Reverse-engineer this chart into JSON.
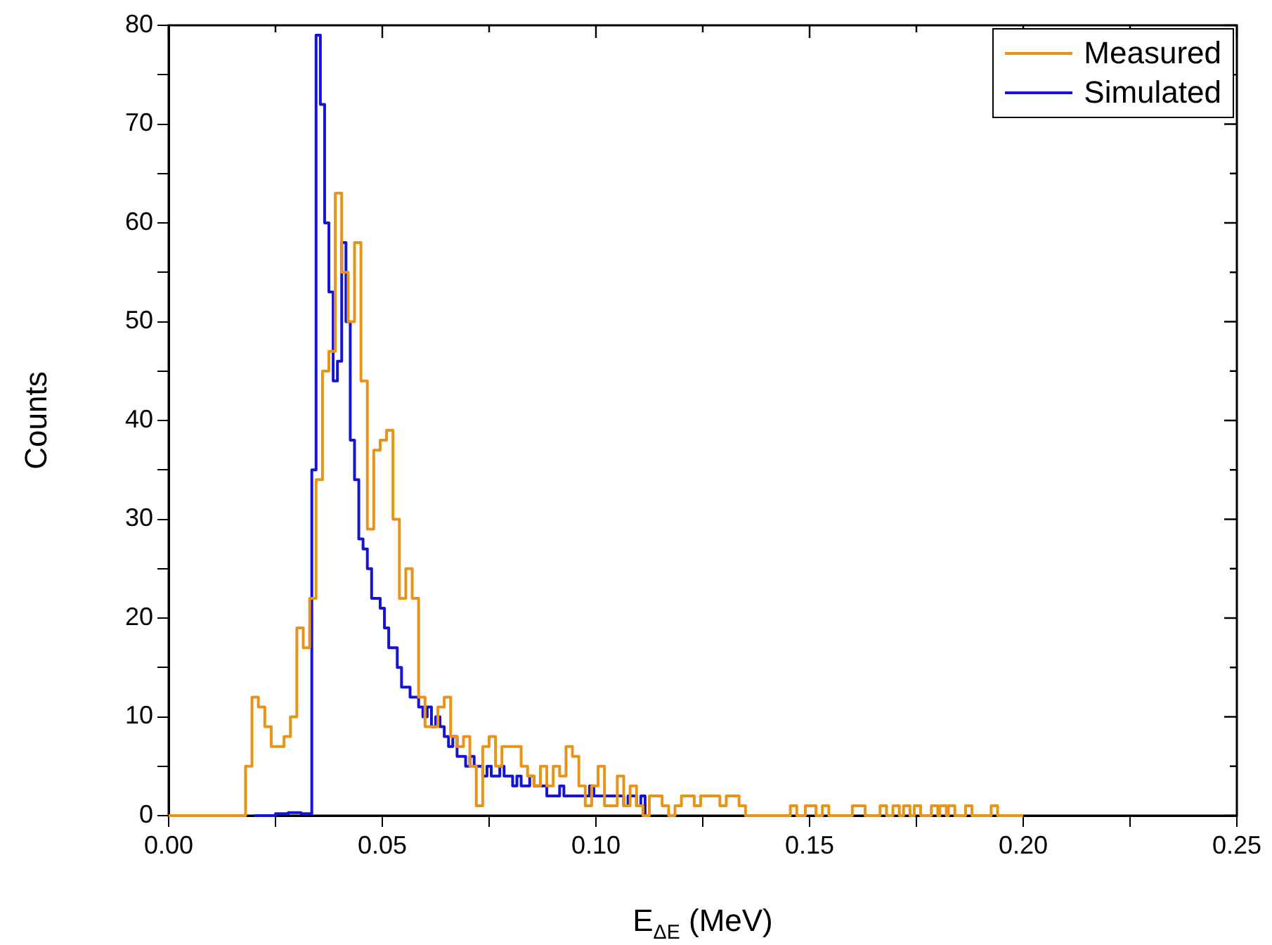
{
  "chart_data": {
    "type": "step",
    "xlabel": "E$_{ΔE}$ (MeV)",
    "ylabel": "Counts",
    "xlim": [
      0,
      0.25
    ],
    "xticks": [
      {
        "value": 0,
        "label": "0.00"
      },
      {
        "value": 0.025,
        "label": null
      },
      {
        "value": 0.05,
        "label": "0.05"
      },
      {
        "value": 0.075,
        "label": null
      },
      {
        "value": 0.1,
        "label": "0.10"
      },
      {
        "value": 0.125,
        "label": null
      },
      {
        "value": 0.15,
        "label": "0.15"
      },
      {
        "value": 0.175,
        "label": null
      },
      {
        "value": 0.2,
        "label": "0.20"
      },
      {
        "value": 0.225,
        "label": null
      },
      {
        "value": 0.25,
        "label": "0.25"
      }
    ],
    "ylim": [
      0,
      80
    ],
    "yticks": [
      0,
      {
        "value": 5,
        "label": null
      },
      10,
      {
        "value": 15,
        "label": null
      },
      20,
      {
        "value": 25,
        "label": null
      },
      30,
      {
        "value": 35,
        "label": null
      },
      40,
      {
        "value": 45,
        "label": null
      },
      50,
      {
        "value": 55,
        "label": null
      },
      60,
      {
        "value": 65,
        "label": null
      },
      70,
      {
        "value": 75,
        "label": null
      },
      80
    ],
    "legend": "top right",
    "grid": false,
    "line_style": "solid",
    "marker": "none",
    "series": [
      {
        "name": "Measured",
        "color": "#e8941a",
        "x": [
          0,
          0.018,
          0.0195,
          0.021,
          0.0225,
          0.024,
          0.0255,
          0.027,
          0.0285,
          0.03,
          0.0315,
          0.033,
          0.0345,
          0.036,
          0.0375,
          0.039,
          0.0405,
          0.042,
          0.0435,
          0.045,
          0.0465,
          0.048,
          0.0495,
          0.051,
          0.0525,
          0.054,
          0.0555,
          0.057,
          0.0585,
          0.06,
          0.0615,
          0.063,
          0.0645,
          0.066,
          0.0675,
          0.069,
          0.0705,
          0.072,
          0.0735,
          0.075,
          0.0765,
          0.078,
          0.0795,
          0.081,
          0.0825,
          0.084,
          0.0855,
          0.087,
          0.0885,
          0.09,
          0.0915,
          0.093,
          0.0945,
          0.096,
          0.0975,
          0.099,
          0.1005,
          0.102,
          0.1035,
          0.105,
          0.1065,
          0.108,
          0.1095,
          0.111,
          0.1125,
          0.1155,
          0.117,
          0.1185,
          0.12,
          0.1215,
          0.123,
          0.1245,
          0.126,
          0.1275,
          0.129,
          0.1305,
          0.132,
          0.1335,
          0.135,
          0.1455,
          0.147,
          0.149,
          0.1505,
          0.1515,
          0.153,
          0.1545,
          0.16,
          0.163,
          0.1665,
          0.168,
          0.1695,
          0.171,
          0.172,
          0.1735,
          0.1745,
          0.176,
          0.1785,
          0.18,
          0.1805,
          0.182,
          0.1825,
          0.184,
          0.1865,
          0.188,
          0.1925,
          0.194,
          0.2
        ],
        "values": [
          0,
          5,
          12,
          11,
          9,
          7,
          7,
          8,
          10,
          19,
          17,
          22,
          34,
          45,
          47,
          63,
          55,
          50,
          58,
          44,
          29,
          37,
          38,
          39,
          30,
          22,
          25,
          22,
          12,
          9,
          9,
          11,
          12,
          8,
          7,
          8,
          5,
          1,
          7,
          8,
          5,
          7,
          7,
          7,
          5,
          4,
          3,
          5,
          3,
          5,
          4,
          7,
          6,
          3,
          1,
          3,
          5,
          1,
          1,
          4,
          1,
          3,
          1,
          0,
          2,
          1,
          0,
          1,
          2,
          2,
          1,
          2,
          2,
          2,
          1,
          2,
          2,
          1,
          0,
          1,
          0,
          1,
          1,
          0,
          1,
          0,
          1,
          0,
          1,
          0,
          1,
          0,
          1,
          0,
          1,
          0,
          1,
          0,
          1,
          0,
          1,
          0,
          1,
          0,
          1,
          0,
          0
        ]
      },
      {
        "name": "Simulated",
        "color": "#1414d2",
        "x": [
          0.02,
          0.025,
          0.028,
          0.031,
          0.0335,
          0.0345,
          0.0355,
          0.0365,
          0.0375,
          0.0385,
          0.0395,
          0.0405,
          0.0415,
          0.0425,
          0.0435,
          0.0445,
          0.0455,
          0.0465,
          0.0475,
          0.0485,
          0.0495,
          0.0505,
          0.0515,
          0.0525,
          0.0535,
          0.0545,
          0.0555,
          0.0565,
          0.0575,
          0.0585,
          0.0595,
          0.0605,
          0.0615,
          0.0625,
          0.0635,
          0.0645,
          0.0655,
          0.0665,
          0.0675,
          0.0685,
          0.0695,
          0.0705,
          0.0715,
          0.0725,
          0.0735,
          0.0745,
          0.0755,
          0.0765,
          0.0775,
          0.0785,
          0.0795,
          0.0805,
          0.0815,
          0.0825,
          0.0835,
          0.0845,
          0.0855,
          0.0865,
          0.0875,
          0.0885,
          0.0895,
          0.0905,
          0.0915,
          0.0925,
          0.0935,
          0.0945,
          0.0955,
          0.0965,
          0.0975,
          0.0985,
          0.0995,
          0.1005,
          0.1015,
          0.1025,
          0.1035,
          0.1045,
          0.1055,
          0.1065,
          0.1075,
          0.1085,
          0.1095,
          0.1105,
          0.1115
        ],
        "values": [
          0,
          0.2,
          0.3,
          0.2,
          35,
          79,
          72,
          60,
          53,
          44,
          46,
          58,
          50,
          38,
          34,
          28,
          27,
          25,
          22,
          22,
          21,
          19,
          17,
          17,
          15,
          13,
          13,
          12,
          12,
          11,
          10,
          11,
          9,
          10,
          9,
          8,
          7,
          8,
          6,
          6,
          5,
          6,
          5,
          5,
          4,
          5,
          4,
          4,
          5,
          4,
          4,
          3,
          4,
          3,
          3,
          4,
          3,
          3,
          3,
          2,
          2,
          2,
          3,
          2,
          2,
          2,
          2,
          2,
          2,
          3,
          2,
          2,
          2,
          2,
          2,
          2,
          2,
          1,
          2,
          2,
          1,
          2,
          0
        ]
      }
    ]
  }
}
